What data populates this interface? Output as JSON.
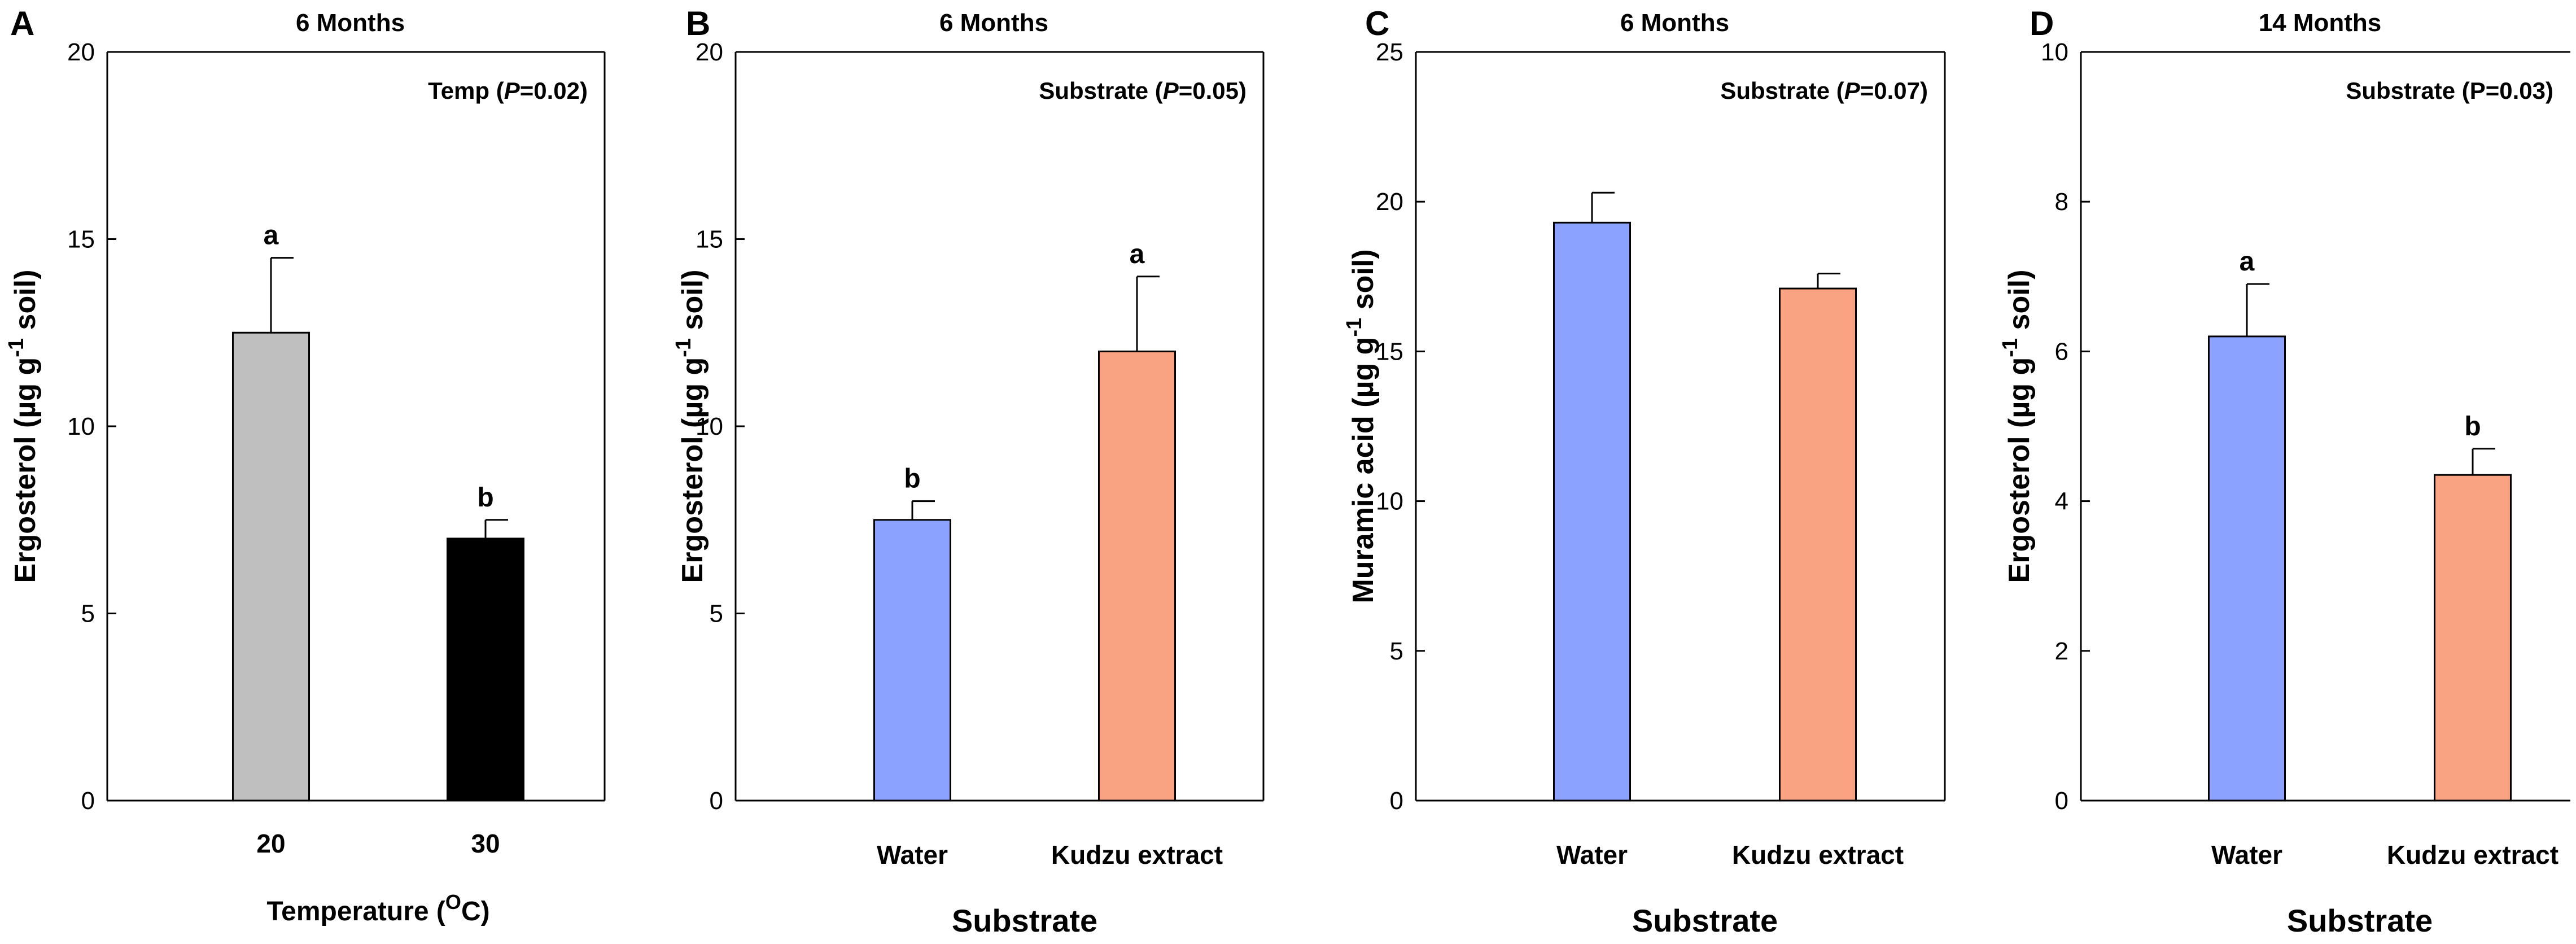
{
  "chart_data": [
    {
      "id": "A",
      "type": "bar",
      "panel_label": "A",
      "title": "6 Months",
      "stat_label": {
        "pre": "Temp (",
        "it": "P",
        "post": "=0.02)"
      },
      "ylabel": {
        "pre": "Ergosterol (µg g",
        "sup": "-1",
        "post": " soil)"
      },
      "xlabel": {
        "pre": "Temperature (",
        "sup": "O",
        "post": "C)"
      },
      "categories": [
        "20",
        "30"
      ],
      "values": [
        12.5,
        7.0
      ],
      "errors": [
        2.0,
        0.5
      ],
      "letters": [
        "a",
        "b"
      ],
      "colors": [
        "#bfbfbf",
        "#000000"
      ],
      "ylim": [
        0,
        20
      ],
      "yticks": [
        0,
        5,
        10,
        15,
        20
      ]
    },
    {
      "id": "B",
      "type": "bar",
      "panel_label": "B",
      "title": "6 Months",
      "stat_label": {
        "pre": "Substrate (",
        "it": "P",
        "post": "=0.05)"
      },
      "ylabel": {
        "pre": "Ergosterol (µg g",
        "sup": "-1",
        "post": " soil)"
      },
      "xlabel": {
        "pre": "Substrate",
        "sup": "",
        "post": ""
      },
      "categories": [
        "Water",
        "Kudzu extract"
      ],
      "values": [
        7.5,
        12.0
      ],
      "errors": [
        0.5,
        2.0
      ],
      "letters": [
        "b",
        "a"
      ],
      "colors": [
        "#8ba2ff",
        "#f9a383"
      ],
      "ylim": [
        0,
        20
      ],
      "yticks": [
        0,
        5,
        10,
        15,
        20
      ]
    },
    {
      "id": "C",
      "type": "bar",
      "panel_label": "C",
      "title": "6 Months",
      "stat_label": {
        "pre": "Substrate (",
        "it": "P",
        "post": "=0.07)"
      },
      "ylabel": {
        "pre": "Muramic acid (µg g",
        "sup": "-1",
        "post": " soil)"
      },
      "xlabel": {
        "pre": "Substrate",
        "sup": "",
        "post": ""
      },
      "categories": [
        "Water",
        "Kudzu extract"
      ],
      "values": [
        19.3,
        17.1
      ],
      "errors": [
        1.0,
        0.5
      ],
      "letters": [
        "",
        ""
      ],
      "colors": [
        "#8ba2ff",
        "#f9a383"
      ],
      "ylim": [
        0,
        25
      ],
      "yticks": [
        0,
        5,
        10,
        15,
        20,
        25
      ]
    },
    {
      "id": "D",
      "type": "bar",
      "panel_label": "D",
      "title": "14 Months",
      "stat_label": {
        "pre": "Substrate (P=0.03)",
        "it": "",
        "post": ""
      },
      "ylabel": {
        "pre": "Ergosterol (µg g",
        "sup": "-1",
        "post": " soil)"
      },
      "xlabel": {
        "pre": "Substrate",
        "sup": "",
        "post": ""
      },
      "categories": [
        "Water",
        "Kudzu extract"
      ],
      "values": [
        6.2,
        4.35
      ],
      "errors": [
        0.7,
        0.35
      ],
      "letters": [
        "a",
        "b"
      ],
      "colors": [
        "#8ba2ff",
        "#f9a383"
      ],
      "ylim": [
        0,
        10
      ],
      "yticks": [
        0,
        2,
        4,
        6,
        8,
        10
      ]
    }
  ]
}
